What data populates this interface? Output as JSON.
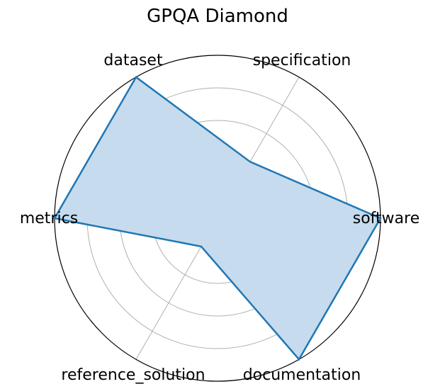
{
  "chart_data": {
    "type": "radar",
    "title": "GPQA Diamond",
    "categories": [
      "software",
      "specification",
      "dataset",
      "metrics",
      "reference_solution",
      "documentation"
    ],
    "values": [
      1.0,
      0.4,
      1.0,
      1.0,
      0.2,
      1.0
    ],
    "rlim": [
      0,
      1
    ],
    "grid_rings": [
      0.2,
      0.4,
      0.6,
      0.8,
      1.0
    ],
    "grid": true,
    "colors": {
      "line": "#1f77b4",
      "fill": "#c6dbed",
      "grid": "#b0b0b0",
      "outer": "#000000"
    }
  }
}
